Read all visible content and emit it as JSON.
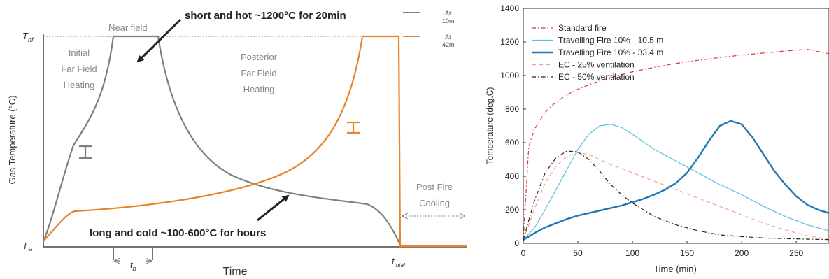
{
  "colors": {
    "grey_curve": "#7f7f7f",
    "orange_curve": "#e8832a",
    "standard_fire": "#e03030",
    "travel_thin": "#5bc0e0",
    "travel_thick": "#1f78b4",
    "ec25": "#f0a0a0",
    "ec50": "#222222"
  },
  "chart_data": [
    {
      "type": "line",
      "title": "",
      "xlabel": "Time",
      "ylabel": "Gas Temperature (°C)",
      "y_axis_ticks": [
        "T∞",
        "Tnf"
      ],
      "x_axis_ticks": [
        "tb",
        "total"
      ],
      "series": [
        {
          "name": "At 10m",
          "color": "grey_curve"
        },
        {
          "name": "At 42m",
          "color": "orange_curve"
        }
      ],
      "labels": {
        "near_field": "Near field",
        "initial": [
          "Initial",
          "Far Field",
          "Heating"
        ],
        "posterior": [
          "Posterior",
          "Far Field",
          "Heating"
        ],
        "post_fire": [
          "Post Fire",
          "Cooling"
        ],
        "short_hot": "short and hot ~1200°C for 20min",
        "long_cold": "long and cold ~100-600°C for hours",
        "t_infinity": "T",
        "t_infinity_sub": "∞",
        "t_nf": "T",
        "t_nf_sub": "nf",
        "tb": "t",
        "tb_sub": "b",
        "t_total": "t",
        "t_total_sub": "total"
      },
      "legend": [
        {
          "line1": "At",
          "line2": "10m"
        },
        {
          "line1": "At",
          "line2": "42m"
        }
      ]
    },
    {
      "type": "line",
      "title": "",
      "xlabel": "Time (min)",
      "ylabel": "Temperature (deg.C)",
      "xlim": [
        0,
        280
      ],
      "ylim": [
        0,
        1400
      ],
      "xticks": [
        0,
        50,
        100,
        150,
        200,
        250
      ],
      "yticks": [
        0,
        200,
        400,
        600,
        800,
        1000,
        1200,
        1400
      ],
      "legend_position": "top-left",
      "series": [
        {
          "name": "Standard fire",
          "color": "standard_fire",
          "style": "dashdot",
          "x": [
            0,
            5,
            10,
            20,
            30,
            40,
            50,
            60,
            70,
            80,
            90,
            100,
            120,
            140,
            160,
            180,
            200,
            220,
            240,
            260,
            280
          ],
          "y": [
            20,
            576,
            678,
            781,
            842,
            885,
            918,
            945,
            968,
            988,
            1006,
            1022,
            1049,
            1072,
            1091,
            1107,
            1122,
            1134,
            1146,
            1156,
            1130
          ]
        },
        {
          "name": "Travelling Fire 10% - 10.5 m",
          "color": "travel_thin",
          "style": "solid",
          "x": [
            0,
            10,
            20,
            30,
            40,
            50,
            60,
            70,
            80,
            90,
            100,
            120,
            140,
            160,
            180,
            200,
            220,
            240,
            260,
            280
          ],
          "y": [
            20,
            90,
            200,
            320,
            440,
            560,
            650,
            700,
            710,
            690,
            650,
            560,
            490,
            420,
            350,
            290,
            220,
            160,
            110,
            75
          ]
        },
        {
          "name": "Travelling Fire 10% - 33.4 m",
          "color": "travel_thick",
          "style": "solid",
          "x": [
            0,
            10,
            20,
            30,
            40,
            50,
            60,
            70,
            80,
            90,
            100,
            110,
            120,
            130,
            140,
            150,
            160,
            170,
            180,
            190,
            200,
            210,
            220,
            230,
            240,
            250,
            260,
            270,
            280
          ],
          "y": [
            20,
            60,
            95,
            120,
            145,
            165,
            180,
            195,
            210,
            225,
            245,
            265,
            290,
            320,
            360,
            420,
            510,
            610,
            700,
            730,
            710,
            630,
            530,
            430,
            350,
            280,
            230,
            200,
            180
          ]
        },
        {
          "name": "EC - 25% ventilation",
          "color": "ec25",
          "style": "dashed",
          "x": [
            0,
            10,
            20,
            30,
            40,
            50,
            60,
            70,
            80,
            100,
            120,
            140,
            160,
            180,
            200,
            220,
            240,
            260,
            280
          ],
          "y": [
            20,
            200,
            360,
            460,
            520,
            540,
            530,
            500,
            470,
            420,
            370,
            320,
            270,
            220,
            170,
            120,
            80,
            45,
            25
          ]
        },
        {
          "name": "EC - 50% ventilation",
          "color": "ec50",
          "style": "dashdot",
          "x": [
            0,
            10,
            20,
            30,
            40,
            50,
            60,
            70,
            80,
            90,
            100,
            120,
            140,
            160,
            180,
            200,
            220,
            240,
            260,
            280
          ],
          "y": [
            20,
            250,
            420,
            510,
            550,
            545,
            500,
            430,
            350,
            290,
            240,
            160,
            110,
            75,
            50,
            40,
            32,
            28,
            25,
            22
          ]
        }
      ]
    }
  ]
}
